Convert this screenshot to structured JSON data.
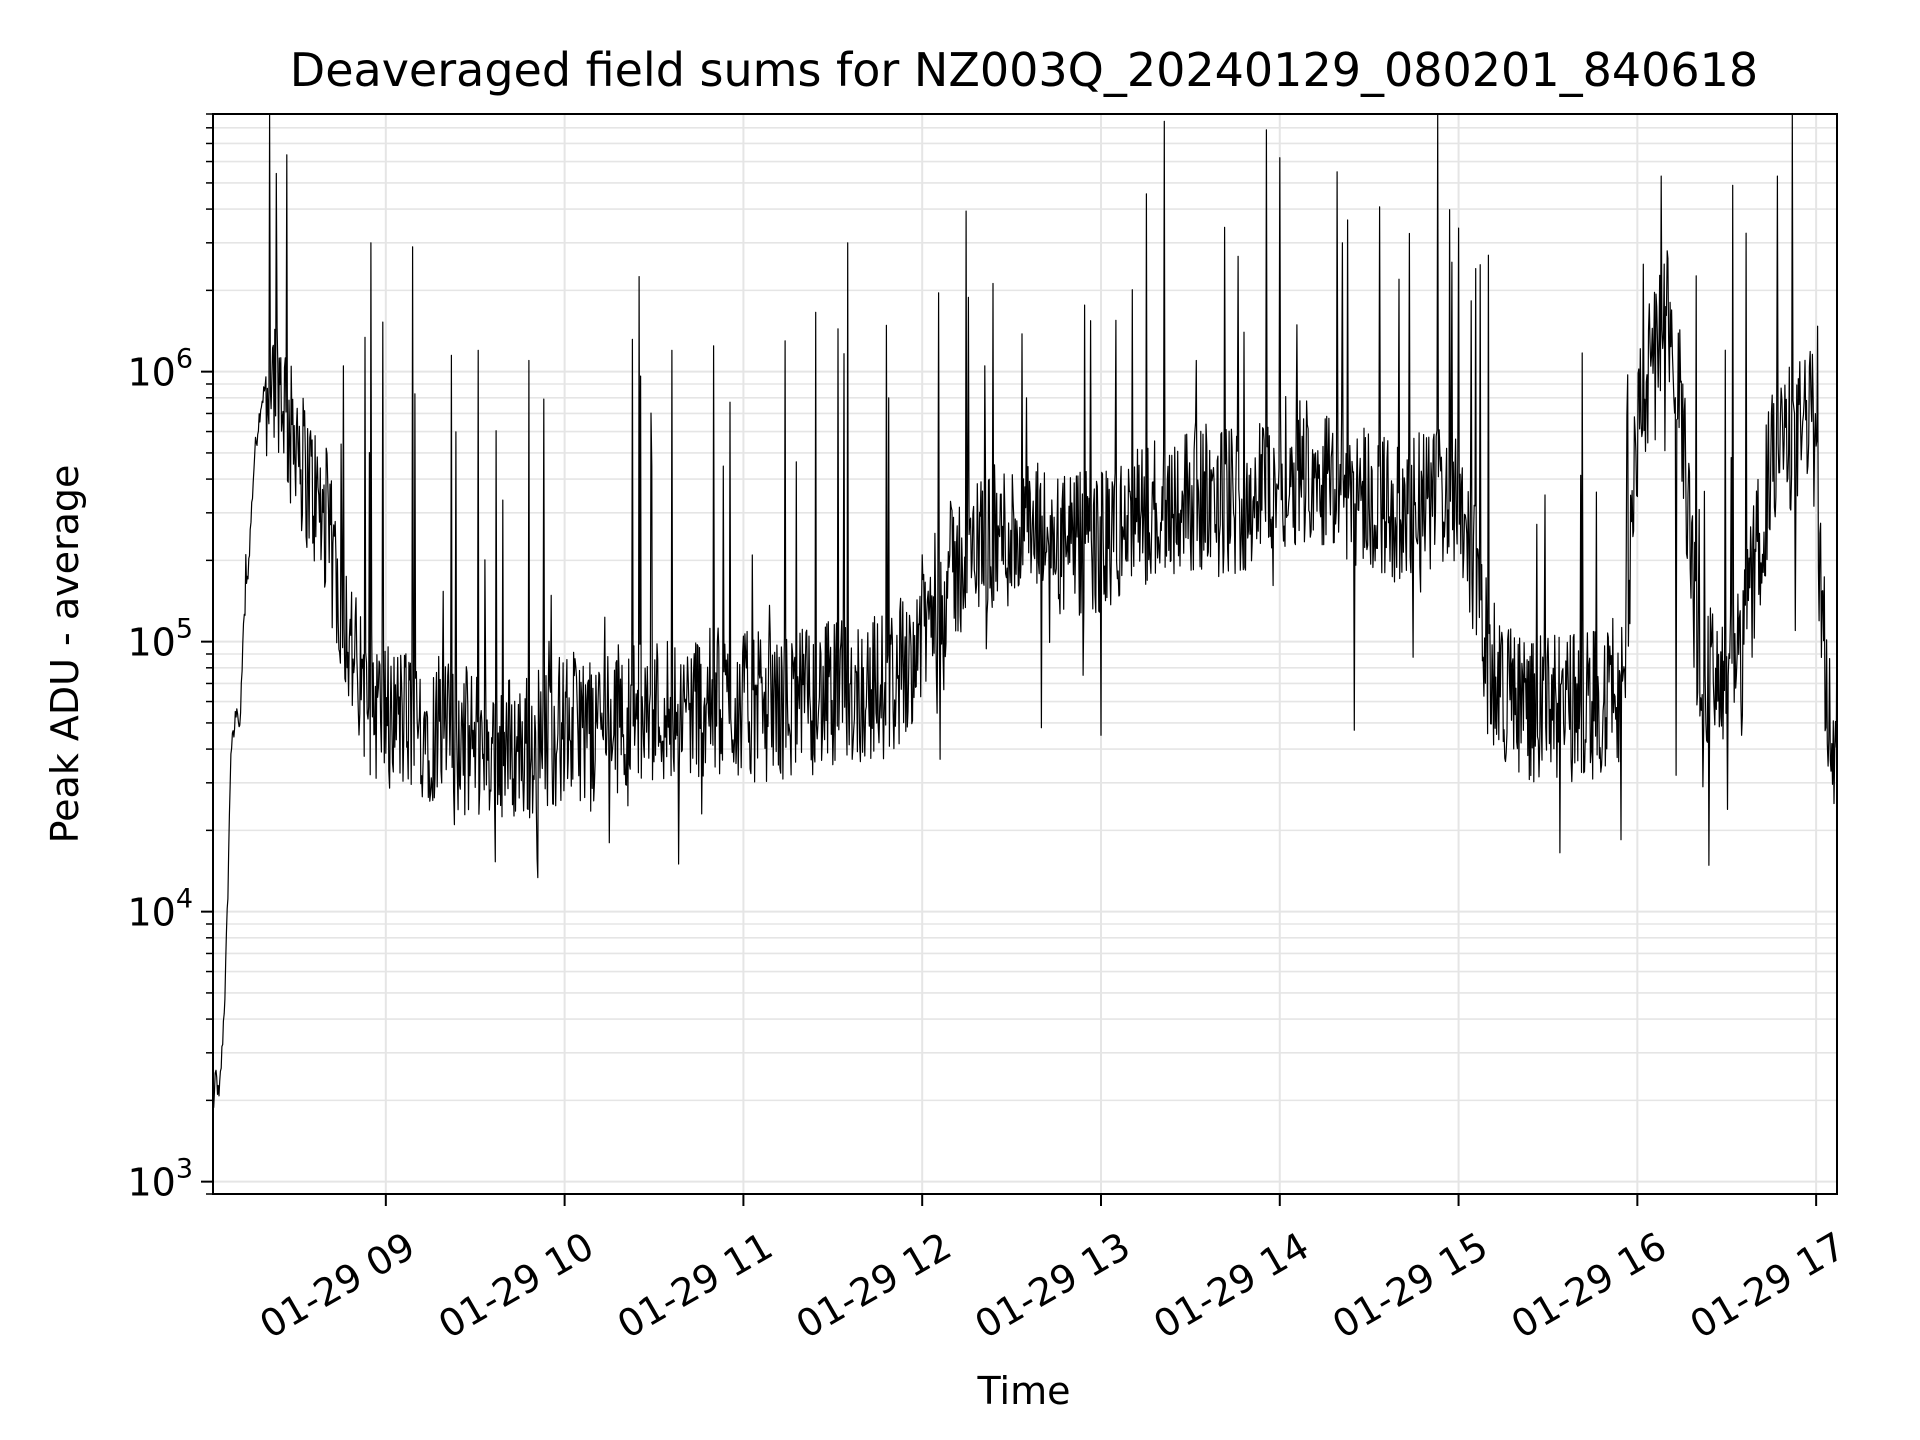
{
  "chart_data": {
    "type": "line",
    "title": "Deaveraged field sums for NZ003Q_20240129_080201_840618",
    "xlabel": "Time",
    "ylabel": "Peak ADU - average",
    "yscale": "log",
    "ylim": [
      900,
      9000000
    ],
    "xlim": [
      "2024-01-29 08:02:00",
      "2024-01-29 17:07:00"
    ],
    "x_ticks": [
      {
        "value": "2024-01-29 09:00",
        "label": "01-29 09"
      },
      {
        "value": "2024-01-29 10:00",
        "label": "01-29 10"
      },
      {
        "value": "2024-01-29 11:00",
        "label": "01-29 11"
      },
      {
        "value": "2024-01-29 12:00",
        "label": "01-29 12"
      },
      {
        "value": "2024-01-29 13:00",
        "label": "01-29 13"
      },
      {
        "value": "2024-01-29 14:00",
        "label": "01-29 14"
      },
      {
        "value": "2024-01-29 15:00",
        "label": "01-29 15"
      },
      {
        "value": "2024-01-29 16:00",
        "label": "01-29 16"
      },
      {
        "value": "2024-01-29 17:00",
        "label": "01-29 17"
      }
    ],
    "y_ticks": [
      {
        "value": 1000,
        "base": "10",
        "exp": "3"
      },
      {
        "value": 10000,
        "base": "10",
        "exp": "4"
      },
      {
        "value": 100000,
        "base": "10",
        "exp": "5"
      },
      {
        "value": 1000000,
        "base": "10",
        "exp": "6"
      }
    ],
    "grid": true,
    "line_color": "#000000",
    "grid_color": "#e5e5e5",
    "series": [
      {
        "points": [
          [
            "2024-01-29 08:02",
            1800
          ],
          [
            "2024-01-29 08:03",
            2500
          ],
          [
            "2024-01-29 08:04",
            2000
          ],
          [
            "2024-01-29 08:05",
            3000
          ],
          [
            "2024-01-29 08:06",
            5000
          ],
          [
            "2024-01-29 08:07",
            12000
          ],
          [
            "2024-01-29 08:08",
            40000
          ],
          [
            "2024-01-29 08:09",
            45000
          ],
          [
            "2024-01-29 08:10",
            60000
          ],
          [
            "2024-01-29 08:11",
            45000
          ],
          [
            "2024-01-29 08:12",
            100000
          ],
          [
            "2024-01-29 08:14",
            200000
          ],
          [
            "2024-01-29 08:16",
            500000
          ],
          [
            "2024-01-29 08:18",
            750000
          ],
          [
            "2024-01-29 08:20",
            920000
          ],
          [
            "2024-01-29 08:22",
            980000
          ],
          [
            "2024-01-29 08:24",
            950000
          ],
          [
            "2024-01-29 08:26",
            800000
          ],
          [
            "2024-01-29 08:28",
            550000
          ],
          [
            "2024-01-29 08:30",
            650000
          ],
          [
            "2024-01-29 08:32",
            450000
          ],
          [
            "2024-01-29 08:34",
            400000
          ],
          [
            "2024-01-29 08:36",
            350000
          ],
          [
            "2024-01-29 08:38",
            300000
          ],
          [
            "2024-01-29 08:40",
            280000
          ],
          [
            "2024-01-29 08:42",
            200000
          ],
          [
            "2024-01-29 08:44",
            160000
          ],
          [
            "2024-01-29 08:46",
            130000
          ],
          [
            "2024-01-29 08:48",
            100000
          ],
          [
            "2024-01-29 08:50",
            80000
          ],
          [
            "2024-01-29 08:52",
            65000
          ],
          [
            "2024-01-29 08:54",
            60000
          ],
          [
            "2024-01-29 08:56",
            58000
          ],
          [
            "2024-01-29 09:00",
            55000
          ],
          [
            "2024-01-29 09:05",
            52000
          ],
          [
            "2024-01-29 09:10",
            50000
          ],
          [
            "2024-01-29 09:15",
            48000
          ],
          [
            "2024-01-29 09:20",
            45000
          ],
          [
            "2024-01-29 09:25",
            43000
          ],
          [
            "2024-01-29 09:30",
            42000
          ],
          [
            "2024-01-29 09:35",
            41000
          ],
          [
            "2024-01-29 09:40",
            41000
          ],
          [
            "2024-01-29 09:45",
            40000
          ],
          [
            "2024-01-29 09:50",
            42000
          ],
          [
            "2024-01-29 09:55",
            45000
          ],
          [
            "2024-01-29 10:00",
            48000
          ],
          [
            "2024-01-29 10:10",
            50000
          ],
          [
            "2024-01-29 10:20",
            53000
          ],
          [
            "2024-01-29 10:30",
            56000
          ],
          [
            "2024-01-29 10:40",
            58000
          ],
          [
            "2024-01-29 10:50",
            60000
          ],
          [
            "2024-01-29 11:00",
            58000
          ],
          [
            "2024-01-29 11:10",
            57000
          ],
          [
            "2024-01-29 11:20",
            60000
          ],
          [
            "2024-01-29 11:30",
            63000
          ],
          [
            "2024-01-29 11:40",
            66000
          ],
          [
            "2024-01-29 11:50",
            70000
          ],
          [
            "2024-01-29 12:00",
            110000
          ],
          [
            "2024-01-29 12:10",
            180000
          ],
          [
            "2024-01-29 12:20",
            230000
          ],
          [
            "2024-01-29 12:30",
            250000
          ],
          [
            "2024-01-29 12:40",
            240000
          ],
          [
            "2024-01-29 12:50",
            220000
          ],
          [
            "2024-01-29 13:00",
            230000
          ],
          [
            "2024-01-29 13:10",
            270000
          ],
          [
            "2024-01-29 13:20",
            320000
          ],
          [
            "2024-01-29 13:30",
            350000
          ],
          [
            "2024-01-29 13:40",
            330000
          ],
          [
            "2024-01-29 13:50",
            340000
          ],
          [
            "2024-01-29 14:00",
            420000
          ],
          [
            "2024-01-29 14:10",
            450000
          ],
          [
            "2024-01-29 14:20",
            380000
          ],
          [
            "2024-01-29 14:30",
            350000
          ],
          [
            "2024-01-29 14:40",
            300000
          ],
          [
            "2024-01-29 14:50",
            330000
          ],
          [
            "2024-01-29 15:00",
            380000
          ],
          [
            "2024-01-29 15:05",
            200000
          ],
          [
            "2024-01-29 15:10",
            80000
          ],
          [
            "2024-01-29 15:20",
            60000
          ],
          [
            "2024-01-29 15:30",
            55000
          ],
          [
            "2024-01-29 15:40",
            58000
          ],
          [
            "2024-01-29 15:50",
            62000
          ],
          [
            "2024-01-29 15:55",
            70000
          ],
          [
            "2024-01-29 16:00",
            600000
          ],
          [
            "2024-01-29 16:05",
            1100000
          ],
          [
            "2024-01-29 16:10",
            1500000
          ],
          [
            "2024-01-29 16:15",
            700000
          ],
          [
            "2024-01-29 16:20",
            100000
          ],
          [
            "2024-01-29 16:25",
            70000
          ],
          [
            "2024-01-29 16:30",
            65000
          ],
          [
            "2024-01-29 16:35",
            90000
          ],
          [
            "2024-01-29 16:40",
            200000
          ],
          [
            "2024-01-29 16:45",
            450000
          ],
          [
            "2024-01-29 16:50",
            550000
          ],
          [
            "2024-01-29 16:55",
            600000
          ],
          [
            "2024-01-29 16:58",
            800000
          ],
          [
            "2024-01-29 17:00",
            400000
          ],
          [
            "2024-01-29 17:02",
            120000
          ],
          [
            "2024-01-29 17:04",
            60000
          ],
          [
            "2024-01-29 17:06",
            30000
          ]
        ],
        "peaks": [
          [
            "2024-01-29 08:13",
            210000
          ],
          [
            "2024-01-29 08:55",
            3000000
          ],
          [
            "2024-01-29 09:09",
            2900000
          ],
          [
            "2024-01-29 09:22",
            1150000
          ],
          [
            "2024-01-29 09:31",
            1200000
          ],
          [
            "2024-01-29 09:48",
            1100000
          ],
          [
            "2024-01-29 10:25",
            2250000
          ],
          [
            "2024-01-29 10:36",
            1200000
          ],
          [
            "2024-01-29 11:14",
            1300000
          ],
          [
            "2024-01-29 11:35",
            3000000
          ],
          [
            "2024-01-29 12:21",
            1050000
          ],
          [
            "2024-01-29 12:35",
            800000
          ],
          [
            "2024-01-29 13:05",
            1550000
          ],
          [
            "2024-01-29 13:32",
            1100000
          ],
          [
            "2024-01-29 13:48",
            1400000
          ],
          [
            "2024-01-29 14:00",
            6200000
          ],
          [
            "2024-01-29 14:21",
            3000000
          ],
          [
            "2024-01-29 14:40",
            2200000
          ],
          [
            "2024-01-29 15:00",
            3400000
          ],
          [
            "2024-01-29 15:10",
            2700000
          ],
          [
            "2024-01-29 16:02",
            2500000
          ],
          [
            "2024-01-29 16:08",
            5300000
          ],
          [
            "2024-01-29 16:32",
            4900000
          ],
          [
            "2024-01-29 16:47",
            5300000
          ]
        ],
        "troughs": [
          [
            "2024-01-29 09:23",
            21000
          ],
          [
            "2024-01-29 09:40",
            27000
          ],
          [
            "2024-01-29 10:14",
            38000
          ],
          [
            "2024-01-29 11:30",
            35000
          ],
          [
            "2024-01-29 12:40",
            48000
          ],
          [
            "2024-01-29 13:00",
            45000
          ],
          [
            "2024-01-29 14:25",
            47000
          ],
          [
            "2024-01-29 15:45",
            31000
          ],
          [
            "2024-01-29 16:13",
            32000
          ],
          [
            "2024-01-29 16:22",
            29000
          ],
          [
            "2024-01-29 16:53",
            110000
          ],
          [
            "2024-01-29 16:35",
            45000
          ]
        ]
      }
    ]
  }
}
